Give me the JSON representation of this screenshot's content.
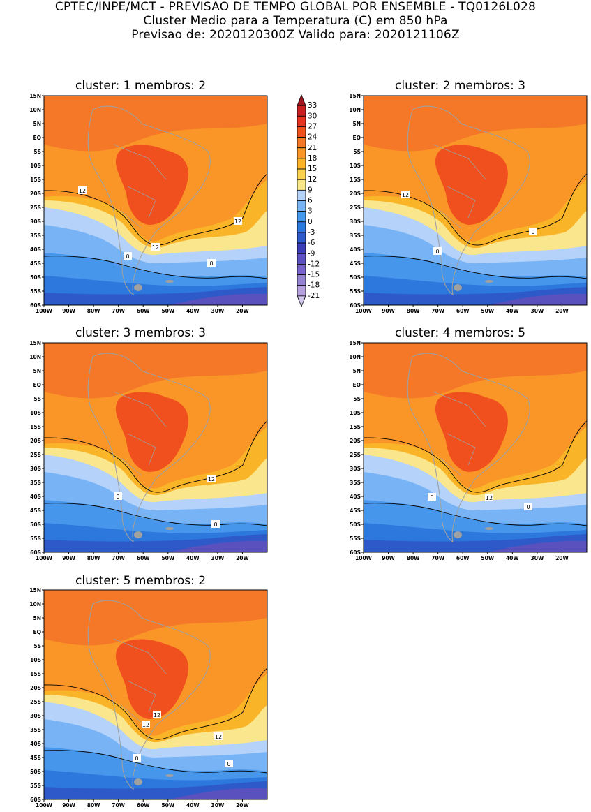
{
  "header": {
    "line1": "CPTEC/INPE/MCT - PREVISAO DE TEMPO GLOBAL POR ENSEMBLE - TQ0126L028",
    "line2": "Cluster Medio para a Temperatura (C) em 850 hPa",
    "line3": "Previsao de: 2020120300Z    Valido para: 2020121106Z"
  },
  "lat_labels": [
    "15N",
    "10N",
    "5N",
    "EQ",
    "5S",
    "10S",
    "15S",
    "20S",
    "25S",
    "30S",
    "35S",
    "40S",
    "45S",
    "50S",
    "55S",
    "60S"
  ],
  "lon_labels": [
    "100W",
    "90W",
    "80W",
    "70W",
    "60W",
    "50W",
    "40W",
    "30W",
    "20W"
  ],
  "panels": [
    {
      "title": "cluster: 1   membros: 2",
      "contour_labels": [
        "12",
        "12",
        "12",
        "0",
        "0"
      ]
    },
    {
      "title": "cluster: 2   membros: 3",
      "contour_labels": [
        "12",
        "0",
        "0"
      ]
    },
    {
      "title": "cluster: 3   membros: 3",
      "contour_labels": [
        "12",
        "0",
        "0"
      ]
    },
    {
      "title": "cluster: 4   membros: 5",
      "contour_labels": [
        "12",
        "0",
        "0"
      ]
    },
    {
      "title": "cluster: 5   membros: 2",
      "contour_labels": [
        "12",
        "12",
        "12",
        "0",
        "0"
      ]
    }
  ],
  "colorbar": {
    "levels": [
      "33",
      "30",
      "27",
      "24",
      "21",
      "18",
      "15",
      "12",
      "9",
      "6",
      "3",
      "0",
      "-3",
      "-6",
      "-9",
      "-12",
      "-15",
      "-18",
      "-21"
    ],
    "colors": [
      "#a0141e",
      "#c81e1e",
      "#e6321e",
      "#f0501e",
      "#f57828",
      "#fa9628",
      "#fab428",
      "#fad250",
      "#fae68c",
      "#b4d2fa",
      "#78b4f5",
      "#4696eb",
      "#2d78dc",
      "#2d5ac8",
      "#3c3cb4",
      "#5a50be",
      "#7864c8",
      "#9682d2",
      "#b4a0dc",
      "#d2c8eb"
    ]
  },
  "zone_colors": {
    "t21": "#f0501e",
    "t18": "#f57828",
    "t15": "#fa9628",
    "t12": "#fab428",
    "t9": "#fae68c",
    "t6": "#b4d2fa",
    "t3": "#78b4f5",
    "t0": "#4696eb",
    "tm3": "#2d78dc",
    "tm6": "#2d5ac8",
    "tm9": "#5a50be",
    "land": "#a0a0a0"
  }
}
